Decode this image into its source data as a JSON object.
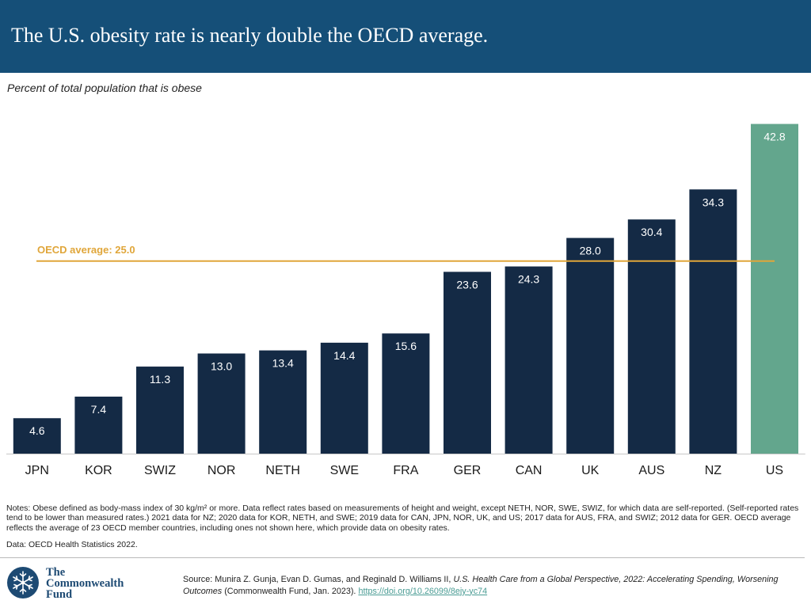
{
  "header": {
    "title": "The U.S. obesity rate is nearly double the OECD average.",
    "subtitle": "Percent of total population that is obese"
  },
  "chart_data": {
    "type": "bar",
    "title": "The U.S. obesity rate is nearly double the OECD average.",
    "ylabel": "Percent of total population that is obese",
    "xlabel": "",
    "categories": [
      "JPN",
      "KOR",
      "SWIZ",
      "NOR",
      "NETH",
      "SWE",
      "FRA",
      "GER",
      "CAN",
      "UK",
      "AUS",
      "NZ",
      "US"
    ],
    "values": [
      4.6,
      7.4,
      11.3,
      13.0,
      13.4,
      14.4,
      15.6,
      23.6,
      24.3,
      28.0,
      30.4,
      34.3,
      42.8
    ],
    "data_labels": [
      "4.6",
      "7.4",
      "11.3",
      "13.0",
      "13.4",
      "14.4",
      "15.6",
      "23.6",
      "24.3",
      "28.0",
      "30.4",
      "34.3",
      "42.8"
    ],
    "highlight": "US",
    "ylim": [
      0,
      45
    ],
    "grid": false,
    "reference_line": {
      "label": "OECD average: 25.0",
      "value": 25.0
    },
    "colors": {
      "bar": "#142a45",
      "highlight": "#63a68d",
      "reference": "#e0a63a",
      "axis": "#c8c8c8"
    }
  },
  "notes": "Notes: Obese defined as body-mass index of 30 kg/m² or more. Data reflect rates based on measurements of height and weight, except NETH, NOR, SWE, SWIZ, for which data are self-reported. (Self-reported rates tend to be lower than measured rates.) 2021 data for NZ; 2020 data for KOR, NETH, and SWE; 2019 data for CAN, JPN, NOR, UK, and US; 2017 data for AUS, FRA, and SWIZ; 2012 data for GER. OECD average reflects the average of 23 OECD member countries, including ones not shown here, which provide data on obesity rates.",
  "data_source": "Data: OECD Health Statistics 2022.",
  "logo": {
    "line1": "The",
    "line2": "Commonwealth",
    "line3": "Fund",
    "icon": "snowflake-emblem-icon"
  },
  "source": {
    "prefix": "Source: Munira Z. Gunja, Evan D. Gumas, and Reginald D. Williams II, ",
    "title": "U.S. Health Care from a Global Perspective, 2022: Accelerating Spending, Worsening Outcomes",
    "suffix": " (Commonwealth Fund, Jan. 2023). ",
    "link": "https://doi.org/10.26099/8ejy-yc74"
  }
}
